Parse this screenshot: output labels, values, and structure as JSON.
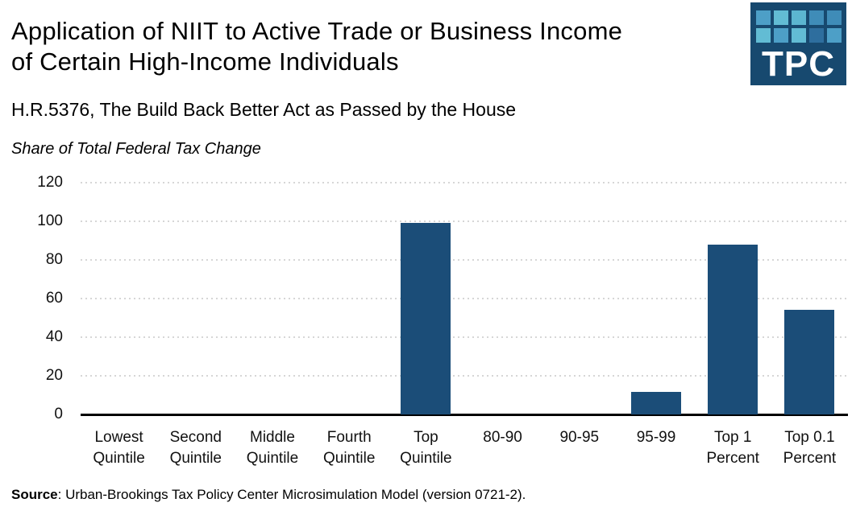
{
  "header": {
    "title_line1": "Application of NIIT to Active Trade or Business Income",
    "title_line2": "of Certain High-Income Individuals",
    "subtitle": "H.R.5376, The Build Back Better Act as Passed by the House",
    "axis_unit_label": "Share of Total Federal Tax Change"
  },
  "logo": {
    "text": "TPC",
    "background_color": "#17496F",
    "square_colors": [
      "#4D9FC7",
      "#62BCD4",
      "#5CB6D0",
      "#3F8CB8",
      "#3F8CB8",
      "#62BCD4",
      "#4D9FC7",
      "#62BCD4",
      "#2E6E9E",
      "#4D9FC7"
    ]
  },
  "chart_data": {
    "type": "bar",
    "title": "Application of NIIT to Active Trade or Business Income of Certain High-Income Individuals",
    "subtitle": "H.R.5376, The Build Back Better Act as Passed by the House",
    "ylabel": "Share of Total Federal Tax Change",
    "xlabel": "",
    "categories": [
      "Lowest Quintile",
      "Second Quintile",
      "Middle Quintile",
      "Fourth Quintile",
      "Top Quintile",
      "80-90",
      "90-95",
      "95-99",
      "Top 1 Percent",
      "Top 0.1 Percent"
    ],
    "tick_label_lines": [
      [
        "Lowest",
        "Quintile"
      ],
      [
        "Second",
        "Quintile"
      ],
      [
        "Middle",
        "Quintile"
      ],
      [
        "Fourth",
        "Quintile"
      ],
      [
        "Top",
        "Quintile"
      ],
      [
        "80-90"
      ],
      [
        "90-95"
      ],
      [
        "95-99"
      ],
      [
        "Top 1",
        "Percent"
      ],
      [
        "Top 0.1",
        "Percent"
      ]
    ],
    "values": [
      0,
      0,
      0,
      0,
      99,
      0,
      0,
      11.5,
      88,
      54
    ],
    "ylim": [
      0,
      120
    ],
    "yticks": [
      0,
      20,
      40,
      60,
      80,
      100,
      120
    ],
    "grid": "horizontal-dotted",
    "legend": "none",
    "bar_color": "#1B4D78",
    "gridline_color": "#d6d6d6",
    "axis_color": "#000000"
  },
  "source": {
    "label": "Source",
    "text": ": Urban-Brookings Tax Policy Center Microsimulation Model (version 0721-2)."
  }
}
